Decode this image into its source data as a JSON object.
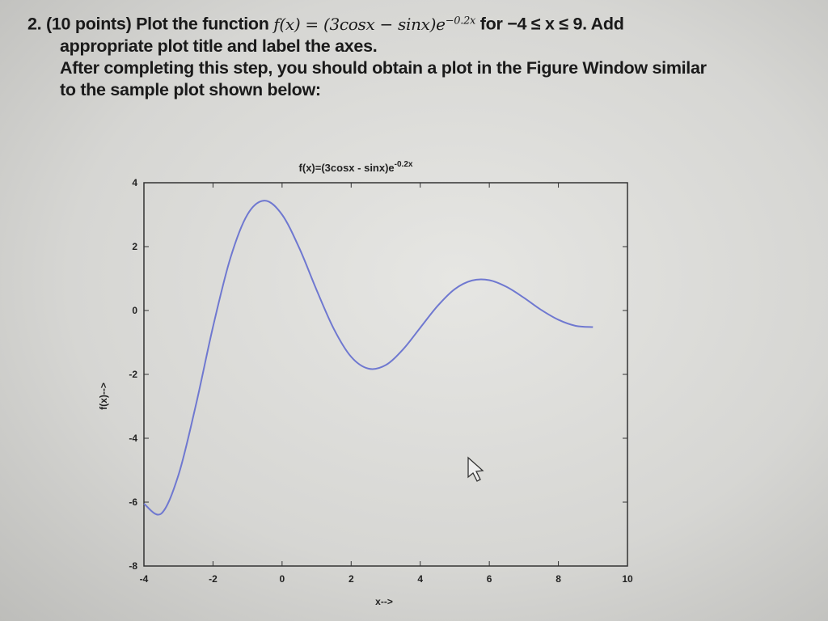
{
  "problem": {
    "number": "2.",
    "points": "(10 points) Plot the function",
    "function": "f(x) = (3cosx − sinx)e",
    "exponent": "−0.2x",
    "range": "for −4 ≤ x ≤ 9. Add",
    "line2": "appropriate plot title and label the axes.",
    "line3": "After completing this step, you should obtain a plot in the Figure Window similar",
    "line4": "to the sample plot shown below:"
  },
  "chart_data": {
    "type": "line",
    "title": "f(x)=(3cosx - sinx)e",
    "title_exponent": "-0.2x",
    "xlabel": "x-->",
    "ylabel": "f(x)-->",
    "xlim": [
      -4,
      10
    ],
    "ylim": [
      -8,
      4
    ],
    "xticks": [
      "-4",
      "-2",
      "0",
      "2",
      "4",
      "6",
      "8",
      "10"
    ],
    "yticks": [
      "4",
      "2",
      "0",
      "-2",
      "-4",
      "-6",
      "-8"
    ],
    "grid": false,
    "line_color": "#6f78d0",
    "series": [
      {
        "x": [
          -4,
          -3.5,
          -3,
          -2.5,
          -2,
          -1.5,
          -1,
          -0.5,
          0,
          0.5,
          1,
          1.5,
          2,
          2.5,
          3,
          3.5,
          4,
          4.5,
          5,
          5.5,
          6,
          6.5,
          7,
          7.5,
          8,
          8.5,
          9
        ],
        "y": [
          -6.05,
          -6.36,
          -5.15,
          -2.98,
          -0.51,
          1.63,
          3.01,
          3.44,
          3.0,
          1.95,
          0.64,
          -0.58,
          -1.45,
          -1.82,
          -1.71,
          -1.22,
          -0.54,
          0.14,
          0.67,
          0.94,
          0.95,
          0.74,
          0.4,
          0.02,
          -0.29,
          -0.48,
          -0.52
        ]
      }
    ]
  }
}
